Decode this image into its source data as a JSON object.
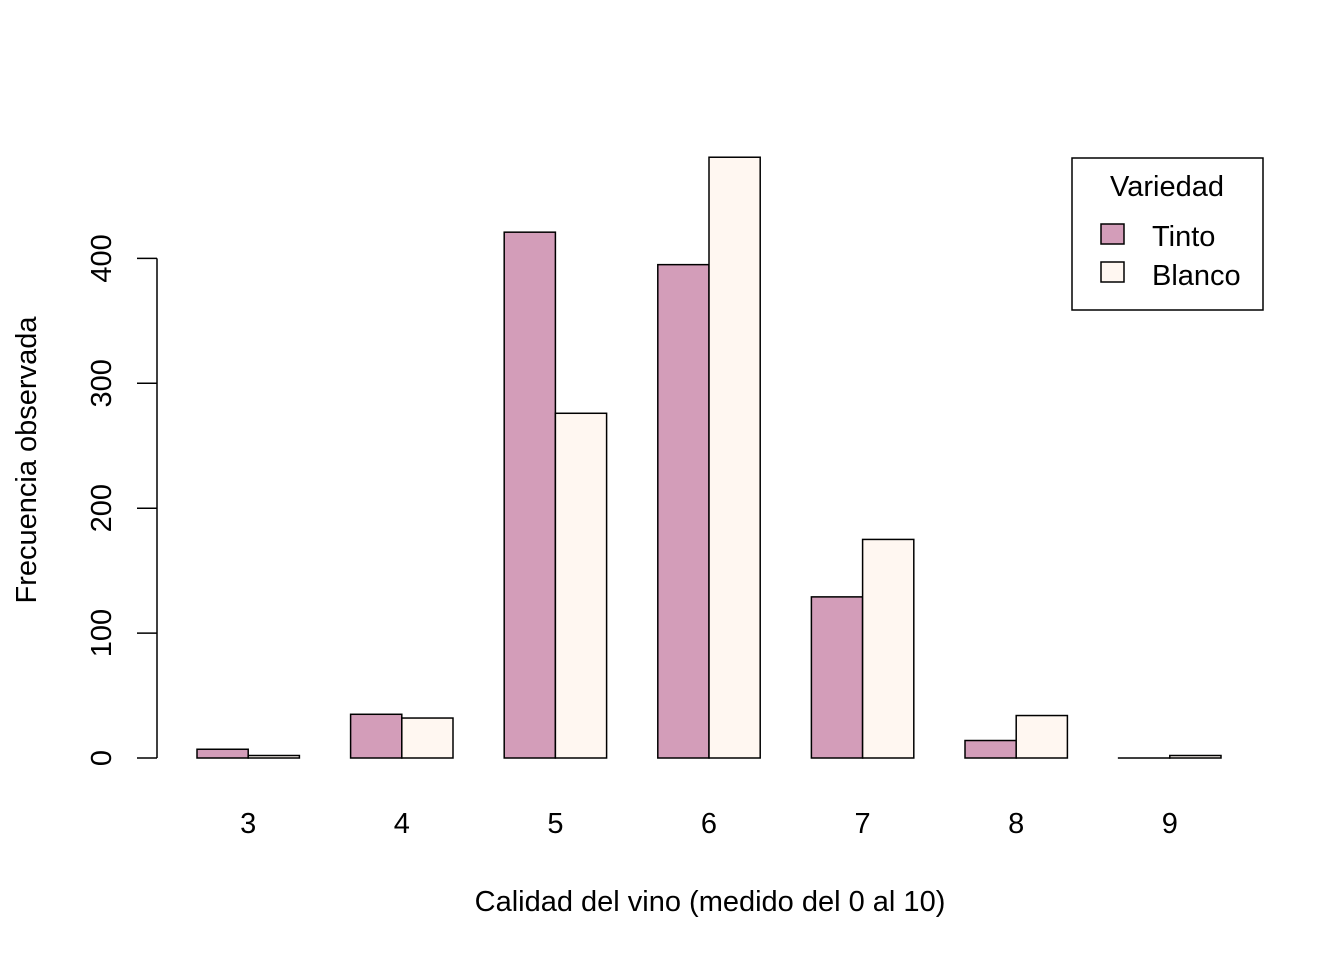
{
  "chart_data": {
    "type": "bar",
    "layout": "grouped",
    "title": "",
    "xlabel": "Calidad del vino (medido del 0 al 10)",
    "ylabel": "Frecuencia observada",
    "categories": [
      "3",
      "4",
      "5",
      "6",
      "7",
      "8",
      "9"
    ],
    "series": [
      {
        "name": "Tinto",
        "color": "#d39db9",
        "values": [
          7,
          35,
          421,
          395,
          129,
          14,
          0
        ]
      },
      {
        "name": "Blanco",
        "color": "#fff7f1",
        "values": [
          2,
          32,
          276,
          481,
          175,
          34,
          2
        ]
      }
    ],
    "ylim": [
      0,
      481
    ],
    "yticks": [
      0,
      100,
      200,
      300,
      400
    ],
    "grid": false,
    "legend": {
      "title": "Variedad",
      "position": "top-right"
    }
  }
}
